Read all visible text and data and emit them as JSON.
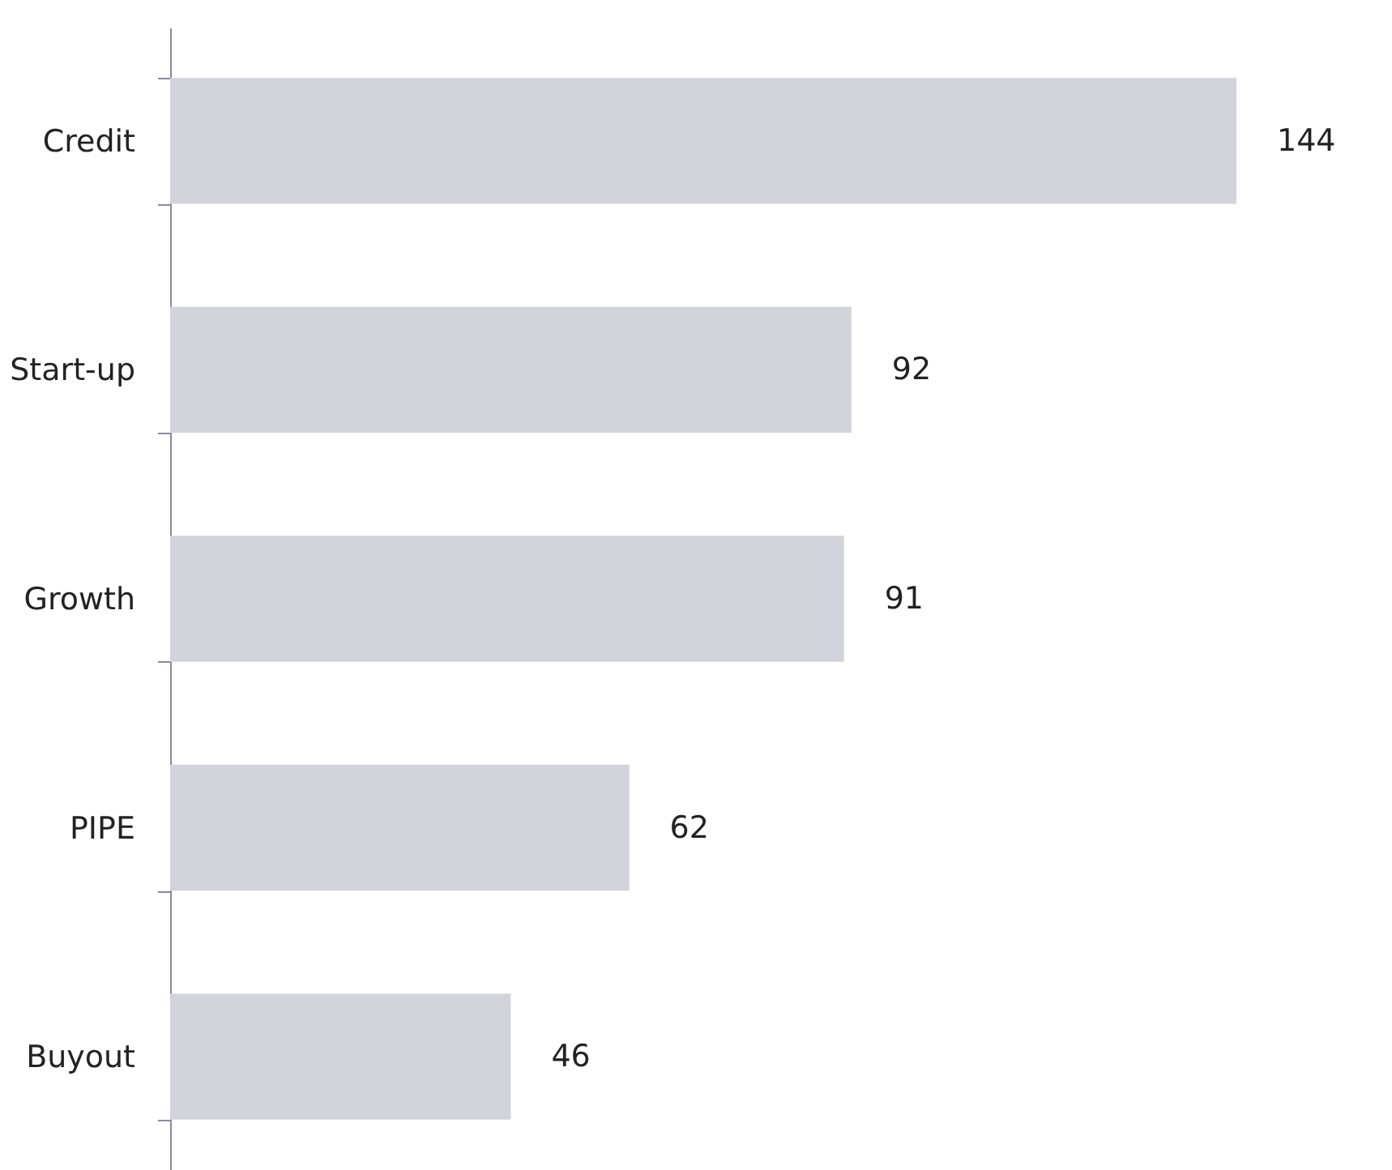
{
  "chart_data": {
    "type": "bar",
    "orientation": "horizontal",
    "categories": [
      "Credit",
      "Start-up",
      "Growth",
      "PIPE",
      "Buyout"
    ],
    "values": [
      144,
      92,
      91,
      62,
      46
    ],
    "color": "#d3d3dc",
    "data_labels": true,
    "grid": false
  }
}
